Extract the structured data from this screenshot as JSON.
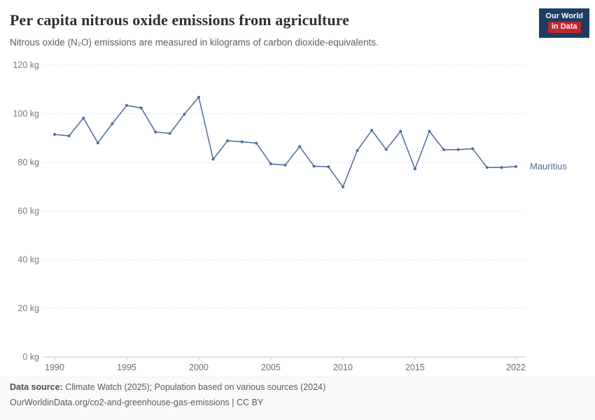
{
  "header": {
    "title": "Per capita nitrous oxide emissions from agriculture",
    "subtitle": "Nitrous oxide (N₂O) emissions are measured in kilograms of carbon dioxide-equivalents.",
    "logo": {
      "line1": "Our World",
      "line2": "in Data",
      "bg_color": "#1d3d63",
      "accent_color": "#c0262d"
    }
  },
  "chart_data": {
    "type": "line",
    "title": "Per capita nitrous oxide emissions from agriculture",
    "unit": "kg",
    "grid": "horizontal dashed",
    "legend_position": "inline right of last point",
    "ylim": [
      0,
      120
    ],
    "yticks": [
      0,
      20,
      40,
      60,
      80,
      100,
      120
    ],
    "xticks": [
      1990,
      1995,
      2000,
      2005,
      2010,
      2015,
      2022
    ],
    "x": [
      1990,
      1991,
      1992,
      1993,
      1994,
      1995,
      1996,
      1997,
      1998,
      1999,
      2000,
      2001,
      2002,
      2003,
      2004,
      2005,
      2006,
      2007,
      2008,
      2009,
      2010,
      2011,
      2012,
      2013,
      2014,
      2015,
      2016,
      2017,
      2018,
      2019,
      2020,
      2021,
      2022
    ],
    "series": [
      {
        "name": "Mauritius",
        "color": "#4c6a9c",
        "values": [
          91.5,
          90.9,
          98.2,
          88.0,
          95.9,
          103.4,
          102.4,
          92.5,
          91.9,
          99.8,
          106.8,
          81.3,
          88.9,
          88.5,
          87.9,
          79.4,
          78.9,
          86.5,
          78.4,
          78.2,
          69.9,
          84.9,
          93.2,
          85.3,
          92.8,
          77.3,
          92.8,
          85.2,
          85.3,
          85.6,
          77.9,
          77.9,
          78.3
        ]
      }
    ]
  },
  "footer": {
    "data_source_label": "Data source:",
    "data_source_text": "Climate Watch (2025); Population based on various sources (2024)",
    "url_line": "OurWorldinData.org/co2-and-greenhouse-gas-emissions | CC BY"
  }
}
